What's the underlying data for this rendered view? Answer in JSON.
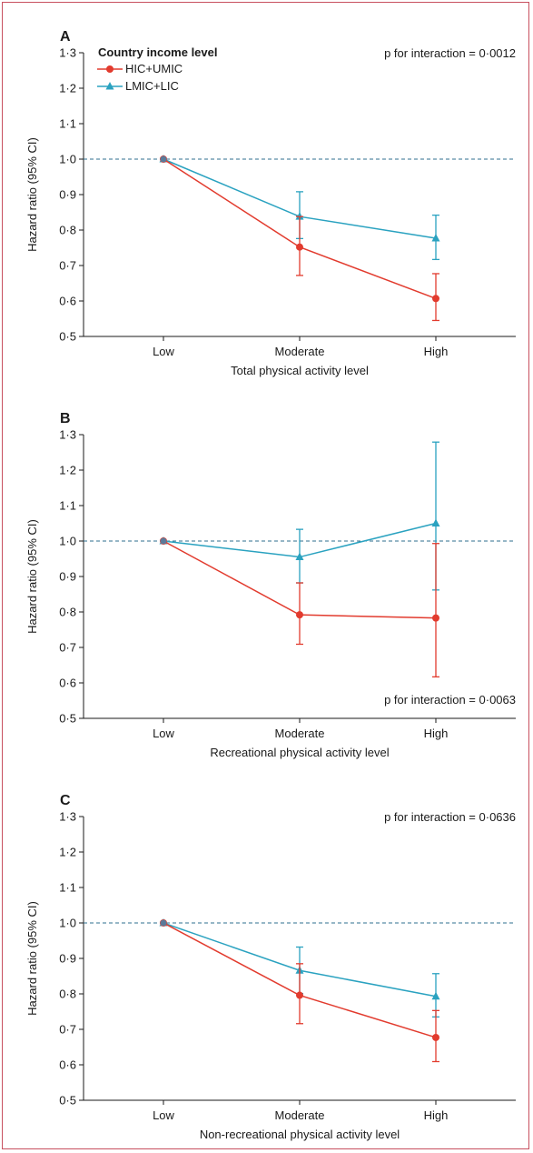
{
  "chart_data": [
    {
      "panel": "A",
      "type": "line",
      "categories": [
        "Low",
        "Moderate",
        "High"
      ],
      "xlabel": "Total physical activity level",
      "ylabel": "Hazard ratio (95% CI)",
      "ylim": [
        0.5,
        1.3
      ],
      "yticks": [
        "0·5",
        "0·6",
        "0·7",
        "0·8",
        "0·9",
        "1·0",
        "1·1",
        "1·2",
        "1·3"
      ],
      "reference_line": 1.0,
      "legend_title": "Country income level",
      "legend_placement": "top-left",
      "annotation": "p for interaction = 0·0012",
      "annotation_placement": "top-right",
      "series": [
        {
          "name": "HIC+UMIC",
          "color": "#e23b2e",
          "marker": "circle",
          "values": [
            1.0,
            0.752,
            0.607
          ],
          "lower": [
            1.0,
            0.672,
            0.545
          ],
          "upper": [
            1.0,
            0.838,
            0.677
          ]
        },
        {
          "name": "LMIC+LIC",
          "color": "#2aa2c0",
          "marker": "triangle",
          "values": [
            1.0,
            0.838,
            0.777
          ],
          "lower": [
            1.0,
            0.776,
            0.717
          ],
          "upper": [
            1.0,
            0.908,
            0.842
          ]
        }
      ]
    },
    {
      "panel": "B",
      "type": "line",
      "categories": [
        "Low",
        "Moderate",
        "High"
      ],
      "xlabel": "Recreational physical activity level",
      "ylabel": "Hazard ratio (95% CI)",
      "ylim": [
        0.5,
        1.3
      ],
      "yticks": [
        "0·5",
        "0·6",
        "0·7",
        "0·8",
        "0·9",
        "1·0",
        "1·1",
        "1·2",
        "1·3"
      ],
      "reference_line": 1.0,
      "annotation": "p for interaction = 0·0063",
      "annotation_placement": "bottom-right",
      "series": [
        {
          "name": "HIC+UMIC",
          "color": "#e23b2e",
          "marker": "circle",
          "values": [
            1.0,
            0.792,
            0.783
          ],
          "lower": [
            1.0,
            0.709,
            0.617
          ],
          "upper": [
            1.0,
            0.882,
            0.993
          ]
        },
        {
          "name": "LMIC+LIC",
          "color": "#2aa2c0",
          "marker": "triangle",
          "values": [
            1.0,
            0.955,
            1.05
          ],
          "lower": [
            1.0,
            0.882,
            0.862
          ],
          "upper": [
            1.0,
            1.033,
            1.279
          ]
        }
      ]
    },
    {
      "panel": "C",
      "type": "line",
      "categories": [
        "Low",
        "Moderate",
        "High"
      ],
      "xlabel": "Non-recreational physical activity level",
      "ylabel": "Hazard ratio (95% CI)",
      "ylim": [
        0.5,
        1.3
      ],
      "yticks": [
        "0·5",
        "0·6",
        "0·7",
        "0·8",
        "0·9",
        "1·0",
        "1·1",
        "1·2",
        "1·3"
      ],
      "reference_line": 1.0,
      "annotation": "p for interaction = 0·0636",
      "annotation_placement": "top-right",
      "series": [
        {
          "name": "HIC+UMIC",
          "color": "#e23b2e",
          "marker": "circle",
          "values": [
            1.0,
            0.796,
            0.677
          ],
          "lower": [
            1.0,
            0.716,
            0.609
          ],
          "upper": [
            1.0,
            0.885,
            0.753
          ]
        },
        {
          "name": "LMIC+LIC",
          "color": "#2aa2c0",
          "marker": "triangle",
          "values": [
            1.0,
            0.866,
            0.793
          ],
          "lower": [
            1.0,
            0.801,
            0.735
          ],
          "upper": [
            1.0,
            0.932,
            0.857
          ]
        }
      ]
    }
  ]
}
